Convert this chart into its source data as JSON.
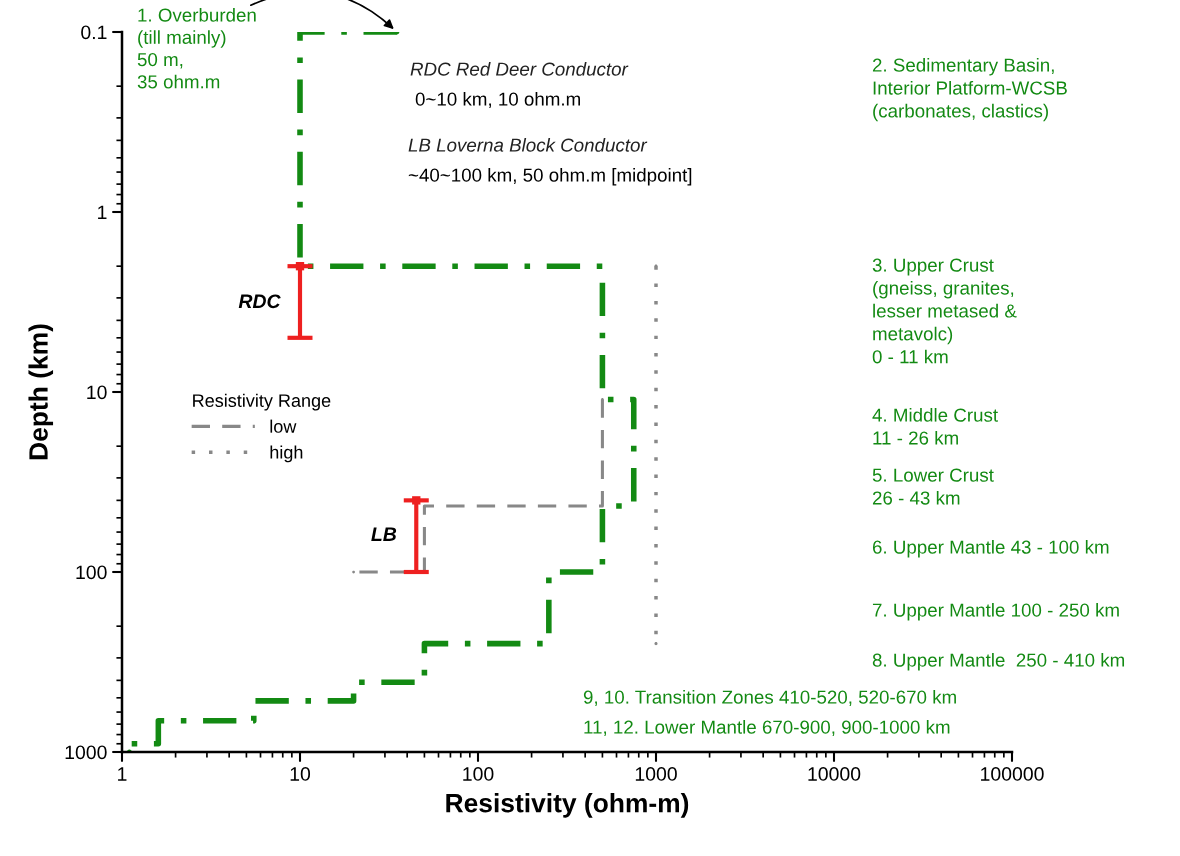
{
  "chart_data": {
    "type": "line",
    "xlabel": "Resistivity (ohm-m)",
    "ylabel": "Depth (km)",
    "log": "xy",
    "xlim": [
      1,
      100000
    ],
    "xticks": [
      1,
      10,
      100,
      1000,
      10000,
      100000
    ],
    "ylim": [
      1000,
      0.1
    ],
    "yticks": [
      0.1,
      1,
      10,
      100,
      1000
    ],
    "grid": false,
    "legend": "left",
    "legend_title": "Resistivity Range",
    "marker": "none",
    "series": [
      {
        "color": "#138a13",
        "line_style": "dashdot",
        "x": [
          35,
          10,
          10,
          500,
          500,
          750,
          750,
          500,
          500,
          250,
          250,
          50,
          50,
          20,
          20,
          5.5,
          5.5,
          1.6,
          1.6,
          1.1,
          1.1
        ],
        "values": [
          0.1,
          0.1,
          2,
          2,
          11,
          11,
          43,
          43,
          100,
          100,
          250,
          250,
          410,
          410,
          520,
          520,
          670,
          670,
          900,
          900,
          1000
        ]
      },
      {
        "name": "low",
        "color": "#888888",
        "line_style": "dashed",
        "x": [
          500,
          500,
          50,
          50,
          20
        ],
        "values": [
          11,
          43,
          43,
          100,
          100
        ]
      },
      {
        "name": "high",
        "color": "#888888",
        "line_style": "dotted",
        "x": [
          1000,
          1000
        ],
        "values": [
          2,
          250
        ]
      },
      {
        "type": "scatter",
        "color": "#ee2020",
        "marker": "square",
        "x": [
          10
        ],
        "values": [
          2
        ],
        "errors": [
          [
            2,
            5
          ]
        ]
      },
      {
        "type": "scatter",
        "color": "#ee2020",
        "marker": "square",
        "x": [
          45
        ],
        "values": [
          40
        ],
        "errors": [
          [
            40,
            100
          ]
        ]
      }
    ],
    "annotations": [
      {
        "text": "1. Overburden\n(till mainly)\n50 m,\n35 ohm.m",
        "x": 35,
        "y": 0.1
      },
      "RDC Red Deer Conductor",
      "0~10 km, 10 ohm.m",
      "LB Loverna Block Conductor",
      "~40~100 km, 50 ohm.m [midpoint]",
      "2. Sedimentary Basin,\nInterior Platform-WCSB\n(carbonates, clastics)",
      "3. Upper Crust\n(gneiss, granites,\nlesser metased &\nmetavolc)\n0 - 11 km",
      "4. Middle Crust\n11 - 26 km",
      "5. Lower Crust\n26 - 43 km",
      "6. Upper Mantle 43 - 100 km",
      "7. Upper Mantle 100 - 250 km",
      "8. Upper Mantle  250 - 410 km",
      "9, 10. Transition Zones 410-520, 520-670 km",
      "11, 12. Lower Mantle 670-900, 900-1000 km",
      {
        "text": "RDC",
        "x": 10,
        "y": 3.2
      },
      {
        "text": "LB",
        "x": 45,
        "y": 63
      }
    ]
  }
}
